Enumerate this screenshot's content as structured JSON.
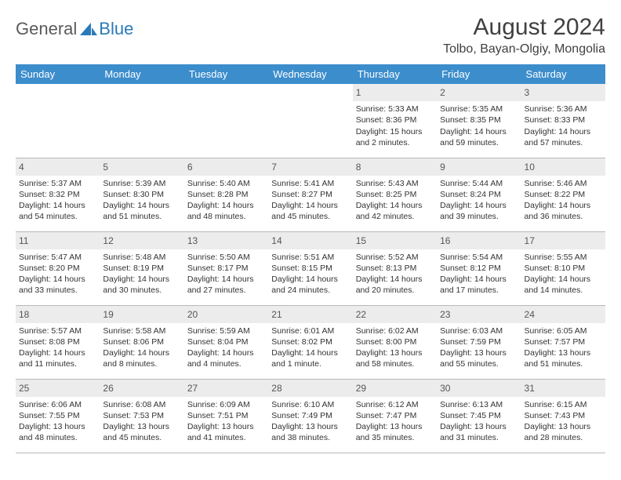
{
  "logo": {
    "text1": "General",
    "text2": "Blue",
    "shape_color": "#2a7ab8"
  },
  "title": "August 2024",
  "subtitle": "Tolbo, Bayan-Olgiy, Mongolia",
  "colors": {
    "header_bg": "#3c8dcc",
    "header_text": "#ffffff",
    "daynum_bg": "#ececec",
    "daynum_text": "#555555",
    "body_text": "#333333",
    "title_text": "#404040",
    "border": "#b8b8b8"
  },
  "weekdays": [
    "Sunday",
    "Monday",
    "Tuesday",
    "Wednesday",
    "Thursday",
    "Friday",
    "Saturday"
  ],
  "weeks": [
    [
      {
        "day": "",
        "sunrise": "",
        "sunset": "",
        "daylight": ""
      },
      {
        "day": "",
        "sunrise": "",
        "sunset": "",
        "daylight": ""
      },
      {
        "day": "",
        "sunrise": "",
        "sunset": "",
        "daylight": ""
      },
      {
        "day": "",
        "sunrise": "",
        "sunset": "",
        "daylight": ""
      },
      {
        "day": "1",
        "sunrise": "Sunrise: 5:33 AM",
        "sunset": "Sunset: 8:36 PM",
        "daylight": "Daylight: 15 hours and 2 minutes."
      },
      {
        "day": "2",
        "sunrise": "Sunrise: 5:35 AM",
        "sunset": "Sunset: 8:35 PM",
        "daylight": "Daylight: 14 hours and 59 minutes."
      },
      {
        "day": "3",
        "sunrise": "Sunrise: 5:36 AM",
        "sunset": "Sunset: 8:33 PM",
        "daylight": "Daylight: 14 hours and 57 minutes."
      }
    ],
    [
      {
        "day": "4",
        "sunrise": "Sunrise: 5:37 AM",
        "sunset": "Sunset: 8:32 PM",
        "daylight": "Daylight: 14 hours and 54 minutes."
      },
      {
        "day": "5",
        "sunrise": "Sunrise: 5:39 AM",
        "sunset": "Sunset: 8:30 PM",
        "daylight": "Daylight: 14 hours and 51 minutes."
      },
      {
        "day": "6",
        "sunrise": "Sunrise: 5:40 AM",
        "sunset": "Sunset: 8:28 PM",
        "daylight": "Daylight: 14 hours and 48 minutes."
      },
      {
        "day": "7",
        "sunrise": "Sunrise: 5:41 AM",
        "sunset": "Sunset: 8:27 PM",
        "daylight": "Daylight: 14 hours and 45 minutes."
      },
      {
        "day": "8",
        "sunrise": "Sunrise: 5:43 AM",
        "sunset": "Sunset: 8:25 PM",
        "daylight": "Daylight: 14 hours and 42 minutes."
      },
      {
        "day": "9",
        "sunrise": "Sunrise: 5:44 AM",
        "sunset": "Sunset: 8:24 PM",
        "daylight": "Daylight: 14 hours and 39 minutes."
      },
      {
        "day": "10",
        "sunrise": "Sunrise: 5:46 AM",
        "sunset": "Sunset: 8:22 PM",
        "daylight": "Daylight: 14 hours and 36 minutes."
      }
    ],
    [
      {
        "day": "11",
        "sunrise": "Sunrise: 5:47 AM",
        "sunset": "Sunset: 8:20 PM",
        "daylight": "Daylight: 14 hours and 33 minutes."
      },
      {
        "day": "12",
        "sunrise": "Sunrise: 5:48 AM",
        "sunset": "Sunset: 8:19 PM",
        "daylight": "Daylight: 14 hours and 30 minutes."
      },
      {
        "day": "13",
        "sunrise": "Sunrise: 5:50 AM",
        "sunset": "Sunset: 8:17 PM",
        "daylight": "Daylight: 14 hours and 27 minutes."
      },
      {
        "day": "14",
        "sunrise": "Sunrise: 5:51 AM",
        "sunset": "Sunset: 8:15 PM",
        "daylight": "Daylight: 14 hours and 24 minutes."
      },
      {
        "day": "15",
        "sunrise": "Sunrise: 5:52 AM",
        "sunset": "Sunset: 8:13 PM",
        "daylight": "Daylight: 14 hours and 20 minutes."
      },
      {
        "day": "16",
        "sunrise": "Sunrise: 5:54 AM",
        "sunset": "Sunset: 8:12 PM",
        "daylight": "Daylight: 14 hours and 17 minutes."
      },
      {
        "day": "17",
        "sunrise": "Sunrise: 5:55 AM",
        "sunset": "Sunset: 8:10 PM",
        "daylight": "Daylight: 14 hours and 14 minutes."
      }
    ],
    [
      {
        "day": "18",
        "sunrise": "Sunrise: 5:57 AM",
        "sunset": "Sunset: 8:08 PM",
        "daylight": "Daylight: 14 hours and 11 minutes."
      },
      {
        "day": "19",
        "sunrise": "Sunrise: 5:58 AM",
        "sunset": "Sunset: 8:06 PM",
        "daylight": "Daylight: 14 hours and 8 minutes."
      },
      {
        "day": "20",
        "sunrise": "Sunrise: 5:59 AM",
        "sunset": "Sunset: 8:04 PM",
        "daylight": "Daylight: 14 hours and 4 minutes."
      },
      {
        "day": "21",
        "sunrise": "Sunrise: 6:01 AM",
        "sunset": "Sunset: 8:02 PM",
        "daylight": "Daylight: 14 hours and 1 minute."
      },
      {
        "day": "22",
        "sunrise": "Sunrise: 6:02 AM",
        "sunset": "Sunset: 8:00 PM",
        "daylight": "Daylight: 13 hours and 58 minutes."
      },
      {
        "day": "23",
        "sunrise": "Sunrise: 6:03 AM",
        "sunset": "Sunset: 7:59 PM",
        "daylight": "Daylight: 13 hours and 55 minutes."
      },
      {
        "day": "24",
        "sunrise": "Sunrise: 6:05 AM",
        "sunset": "Sunset: 7:57 PM",
        "daylight": "Daylight: 13 hours and 51 minutes."
      }
    ],
    [
      {
        "day": "25",
        "sunrise": "Sunrise: 6:06 AM",
        "sunset": "Sunset: 7:55 PM",
        "daylight": "Daylight: 13 hours and 48 minutes."
      },
      {
        "day": "26",
        "sunrise": "Sunrise: 6:08 AM",
        "sunset": "Sunset: 7:53 PM",
        "daylight": "Daylight: 13 hours and 45 minutes."
      },
      {
        "day": "27",
        "sunrise": "Sunrise: 6:09 AM",
        "sunset": "Sunset: 7:51 PM",
        "daylight": "Daylight: 13 hours and 41 minutes."
      },
      {
        "day": "28",
        "sunrise": "Sunrise: 6:10 AM",
        "sunset": "Sunset: 7:49 PM",
        "daylight": "Daylight: 13 hours and 38 minutes."
      },
      {
        "day": "29",
        "sunrise": "Sunrise: 6:12 AM",
        "sunset": "Sunset: 7:47 PM",
        "daylight": "Daylight: 13 hours and 35 minutes."
      },
      {
        "day": "30",
        "sunrise": "Sunrise: 6:13 AM",
        "sunset": "Sunset: 7:45 PM",
        "daylight": "Daylight: 13 hours and 31 minutes."
      },
      {
        "day": "31",
        "sunrise": "Sunrise: 6:15 AM",
        "sunset": "Sunset: 7:43 PM",
        "daylight": "Daylight: 13 hours and 28 minutes."
      }
    ]
  ]
}
